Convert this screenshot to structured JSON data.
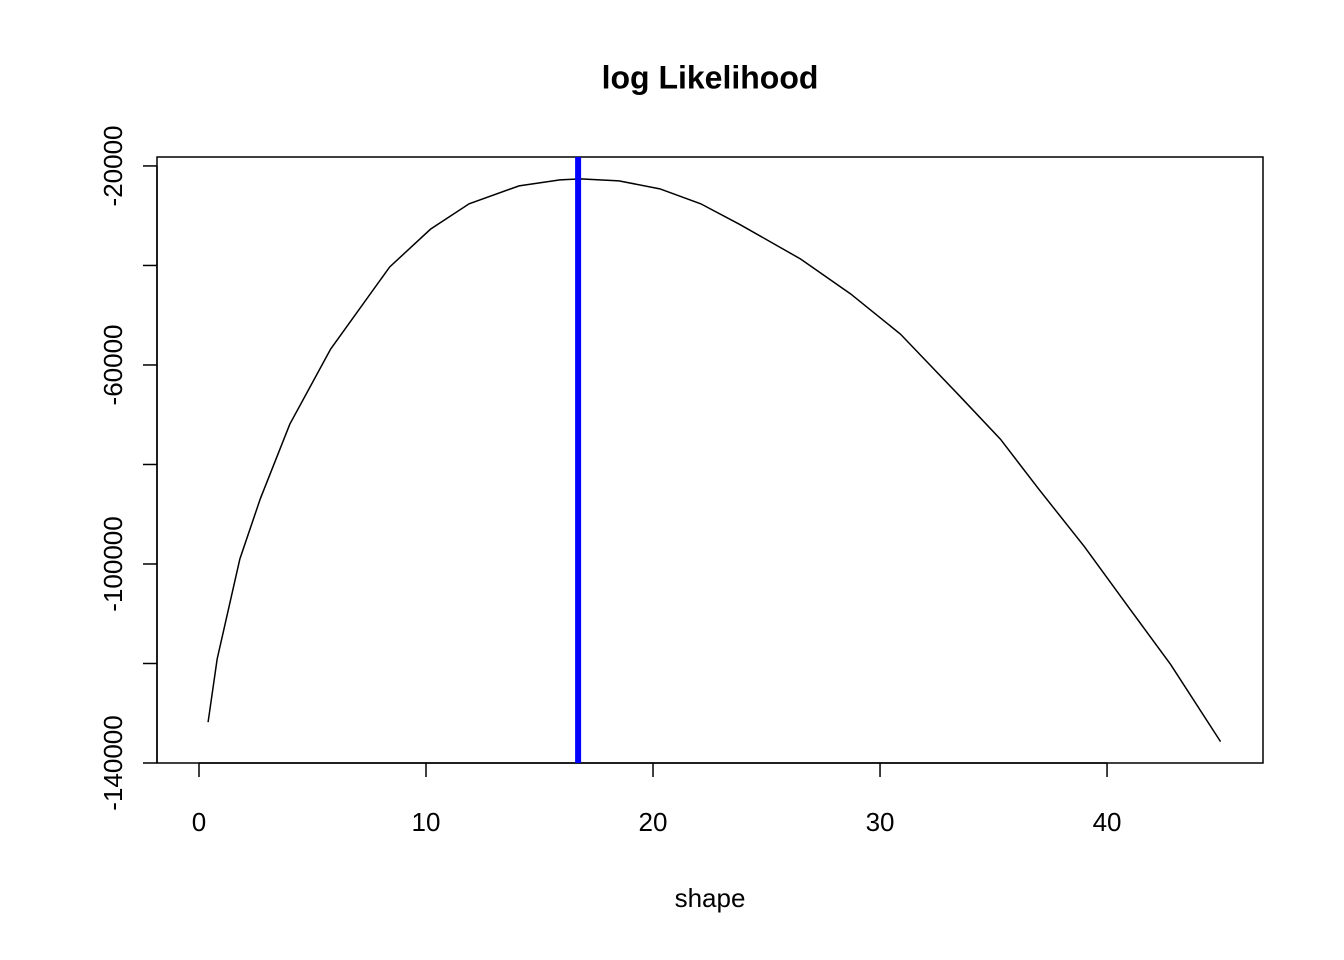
{
  "chart_data": {
    "type": "line",
    "title": "log Likelihood",
    "x_label": "shape",
    "x": [
      0.4,
      0.8,
      1.8,
      2.7,
      4.0,
      5.8,
      8.4,
      10.2,
      11.9,
      14.1,
      15.9,
      16.8,
      18.5,
      20.3,
      22.1,
      23.8,
      26.5,
      28.7,
      30.9,
      33.5,
      35.3,
      37.0,
      39.0,
      41.0,
      42.8,
      45.0
    ],
    "series": [
      {
        "color": "#000000",
        "values": [
          -131800,
          -119100,
          -99000,
          -86900,
          -71900,
          -56800,
          -40300,
          -32700,
          -27600,
          -24000,
          -22800,
          -22600,
          -23000,
          -24600,
          -27600,
          -31700,
          -38700,
          -45700,
          -53800,
          -66200,
          -74900,
          -85000,
          -96500,
          -109000,
          -120200,
          -135700
        ]
      }
    ],
    "vline": {
      "x": 16.7,
      "color": "#0000ff"
    },
    "xlim": [
      -1.85,
      46.87
    ],
    "ylim": [
      -140000,
      -18200
    ],
    "xticks": [
      0,
      10,
      20,
      30,
      40
    ],
    "yticks": [
      -20000,
      {
        "value": -40000,
        "label": null
      },
      -60000,
      {
        "value": -80000,
        "label": null
      },
      -100000,
      {
        "value": -120000,
        "label": null
      },
      -140000
    ],
    "grid": false
  }
}
